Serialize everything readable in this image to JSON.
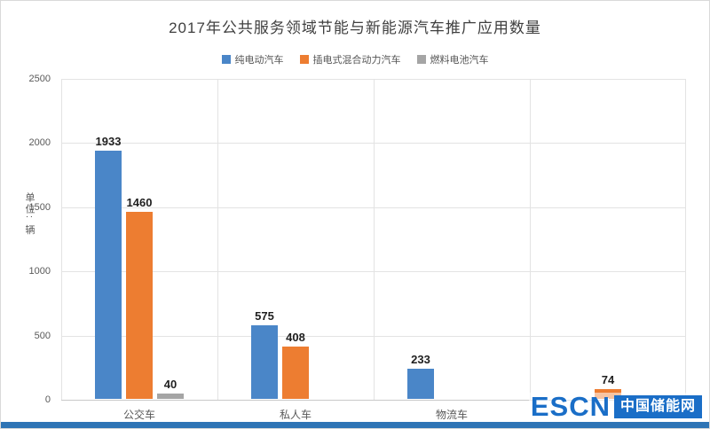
{
  "title": "2017年公共服务领域节能与新能源汽车推广应用数量",
  "watermark": {
    "escn": "ESCN",
    "site": "中国储能网"
  },
  "colors": {
    "bottom_bar": "#2e74b5",
    "watermark_blue": "#1a6ec7"
  },
  "chart_data": {
    "type": "bar",
    "title": "2017年公共服务领域节能与新能源汽车推广应用数量",
    "categories": [
      "公交车",
      "私人车",
      "物流车",
      ""
    ],
    "series": [
      {
        "name": "纯电动汽车",
        "color": "#4a86c8",
        "values": [
          1933,
          575,
          233,
          null
        ]
      },
      {
        "name": "插电式混合动力汽车",
        "color": "#ed7d31",
        "values": [
          1460,
          408,
          null,
          74
        ]
      },
      {
        "name": "燃料电池汽车",
        "color": "#a5a5a5",
        "values": [
          40,
          null,
          null,
          null
        ]
      }
    ],
    "ylabel": "单位: 辆",
    "xlabel": "",
    "ylim": [
      0,
      2500
    ],
    "yticks": [
      0,
      500,
      1000,
      1500,
      2000,
      2500
    ],
    "grid": true,
    "legend_position": "top"
  }
}
